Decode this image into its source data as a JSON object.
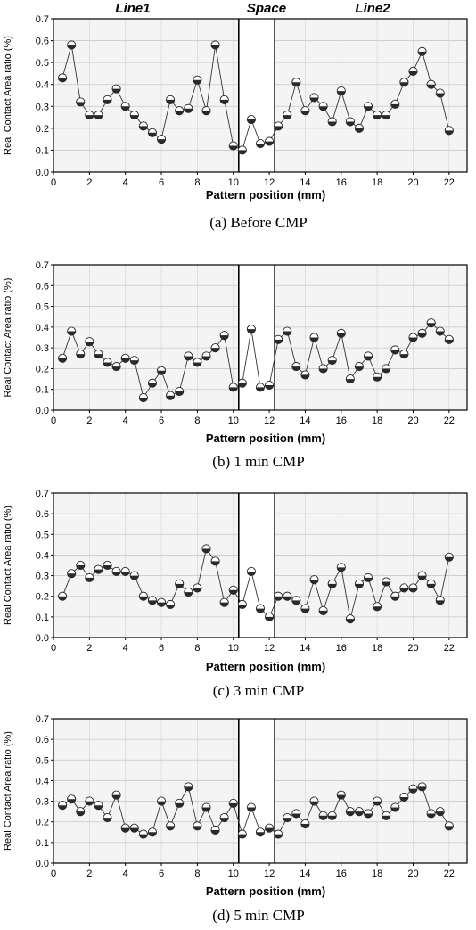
{
  "figure": {
    "headers": [
      "Line1",
      "Space",
      "Line2"
    ]
  },
  "chart_data": [
    {
      "type": "line",
      "caption": "(a) Before CMP",
      "xlabel": "Pattern position (mm)",
      "ylabel": "Real Contact Area ratio (%)",
      "xlim": [
        0,
        23
      ],
      "ylim": [
        0,
        0.7
      ],
      "xticks": [
        0,
        2,
        4,
        6,
        8,
        10,
        12,
        14,
        16,
        18,
        20,
        22
      ],
      "yticks": [
        0,
        0.1,
        0.2,
        0.3,
        0.4,
        0.5,
        0.6,
        0.7
      ],
      "space_region": [
        10.3,
        12.3
      ],
      "grid": true,
      "x": [
        0.5,
        1,
        1.5,
        2,
        2.5,
        3,
        3.5,
        4,
        4.5,
        5,
        5.5,
        6,
        6.5,
        7,
        7.5,
        8,
        8.5,
        9,
        9.5,
        10,
        10.5,
        11,
        11.5,
        12,
        12.5,
        13,
        13.5,
        14,
        14.5,
        15,
        15.5,
        16,
        16.5,
        17,
        17.5,
        18,
        18.5,
        19,
        19.5,
        20,
        20.5,
        21,
        21.5,
        22
      ],
      "values": [
        0.43,
        0.58,
        0.32,
        0.26,
        0.26,
        0.33,
        0.38,
        0.3,
        0.26,
        0.21,
        0.18,
        0.15,
        0.33,
        0.28,
        0.29,
        0.42,
        0.28,
        0.58,
        0.33,
        0.12,
        0.1,
        0.24,
        0.13,
        0.14,
        0.21,
        0.26,
        0.41,
        0.28,
        0.34,
        0.3,
        0.23,
        0.37,
        0.23,
        0.2,
        0.3,
        0.26,
        0.26,
        0.31,
        0.41,
        0.46,
        0.55,
        0.4,
        0.36,
        0.19
      ]
    },
    {
      "type": "line",
      "caption": "(b) 1 min CMP",
      "xlabel": "Pattern position (mm)",
      "ylabel": "Real Contact Area ratio (%)",
      "xlim": [
        0,
        23
      ],
      "ylim": [
        0,
        0.7
      ],
      "xticks": [
        0,
        2,
        4,
        6,
        8,
        10,
        12,
        14,
        16,
        18,
        20,
        22
      ],
      "yticks": [
        0,
        0.1,
        0.2,
        0.3,
        0.4,
        0.5,
        0.6,
        0.7
      ],
      "space_region": [
        10.3,
        12.3
      ],
      "grid": true,
      "x": [
        0.5,
        1,
        1.5,
        2,
        2.5,
        3,
        3.5,
        4,
        4.5,
        5,
        5.5,
        6,
        6.5,
        7,
        7.5,
        8,
        8.5,
        9,
        9.5,
        10,
        10.5,
        11,
        11.5,
        12,
        12.5,
        13,
        13.5,
        14,
        14.5,
        15,
        15.5,
        16,
        16.5,
        17,
        17.5,
        18,
        18.5,
        19,
        19.5,
        20,
        20.5,
        21,
        21.5,
        22
      ],
      "values": [
        0.25,
        0.38,
        0.27,
        0.33,
        0.27,
        0.23,
        0.21,
        0.25,
        0.24,
        0.06,
        0.13,
        0.19,
        0.07,
        0.09,
        0.26,
        0.23,
        0.26,
        0.3,
        0.36,
        0.11,
        0.13,
        0.39,
        0.11,
        0.12,
        0.34,
        0.38,
        0.21,
        0.17,
        0.35,
        0.2,
        0.24,
        0.37,
        0.15,
        0.21,
        0.26,
        0.16,
        0.2,
        0.29,
        0.27,
        0.35,
        0.37,
        0.42,
        0.38,
        0.34
      ]
    },
    {
      "type": "line",
      "caption": "(c) 3 min CMP",
      "xlabel": "Pattern position (mm)",
      "ylabel": "Real Contact Area ratio (%)",
      "xlim": [
        0,
        23
      ],
      "ylim": [
        0,
        0.7
      ],
      "xticks": [
        0,
        2,
        4,
        6,
        8,
        10,
        12,
        14,
        16,
        18,
        20,
        22
      ],
      "yticks": [
        0,
        0.1,
        0.2,
        0.3,
        0.4,
        0.5,
        0.6,
        0.7
      ],
      "space_region": [
        10.3,
        12.3
      ],
      "grid": true,
      "x": [
        0.5,
        1,
        1.5,
        2,
        2.5,
        3,
        3.5,
        4,
        4.5,
        5,
        5.5,
        6,
        6.5,
        7,
        7.5,
        8,
        8.5,
        9,
        9.5,
        10,
        10.5,
        11,
        11.5,
        12,
        12.5,
        13,
        13.5,
        14,
        14.5,
        15,
        15.5,
        16,
        16.5,
        17,
        17.5,
        18,
        18.5,
        19,
        19.5,
        20,
        20.5,
        21,
        21.5,
        22
      ],
      "values": [
        0.2,
        0.31,
        0.35,
        0.29,
        0.33,
        0.35,
        0.32,
        0.32,
        0.3,
        0.2,
        0.18,
        0.17,
        0.16,
        0.26,
        0.22,
        0.24,
        0.43,
        0.37,
        0.17,
        0.23,
        0.16,
        0.32,
        0.14,
        0.1,
        0.2,
        0.2,
        0.18,
        0.14,
        0.28,
        0.13,
        0.26,
        0.34,
        0.09,
        0.26,
        0.29,
        0.15,
        0.27,
        0.2,
        0.24,
        0.24,
        0.3,
        0.26,
        0.18,
        0.39
      ]
    },
    {
      "type": "line",
      "caption": "(d) 5 min CMP",
      "xlabel": "Pattern position (mm)",
      "ylabel": "Real Contact Area ratio (%)",
      "xlim": [
        0,
        23
      ],
      "ylim": [
        0,
        0.7
      ],
      "xticks": [
        0,
        2,
        4,
        6,
        8,
        10,
        12,
        14,
        16,
        18,
        20,
        22
      ],
      "yticks": [
        0,
        0.1,
        0.2,
        0.3,
        0.4,
        0.5,
        0.6,
        0.7
      ],
      "space_region": [
        10.3,
        12.3
      ],
      "grid": true,
      "x": [
        0.5,
        1,
        1.5,
        2,
        2.5,
        3,
        3.5,
        4,
        4.5,
        5,
        5.5,
        6,
        6.5,
        7,
        7.5,
        8,
        8.5,
        9,
        9.5,
        10,
        10.5,
        11,
        11.5,
        12,
        12.5,
        13,
        13.5,
        14,
        14.5,
        15,
        15.5,
        16,
        16.5,
        17,
        17.5,
        18,
        18.5,
        19,
        19.5,
        20,
        20.5,
        21,
        21.5,
        22
      ],
      "values": [
        0.28,
        0.31,
        0.25,
        0.3,
        0.28,
        0.22,
        0.33,
        0.17,
        0.17,
        0.14,
        0.15,
        0.3,
        0.18,
        0.29,
        0.37,
        0.18,
        0.27,
        0.16,
        0.22,
        0.29,
        0.14,
        0.27,
        0.15,
        0.17,
        0.14,
        0.22,
        0.24,
        0.19,
        0.3,
        0.23,
        0.23,
        0.33,
        0.25,
        0.25,
        0.24,
        0.3,
        0.23,
        0.27,
        0.32,
        0.36,
        0.37,
        0.24,
        0.25,
        0.18
      ]
    }
  ]
}
